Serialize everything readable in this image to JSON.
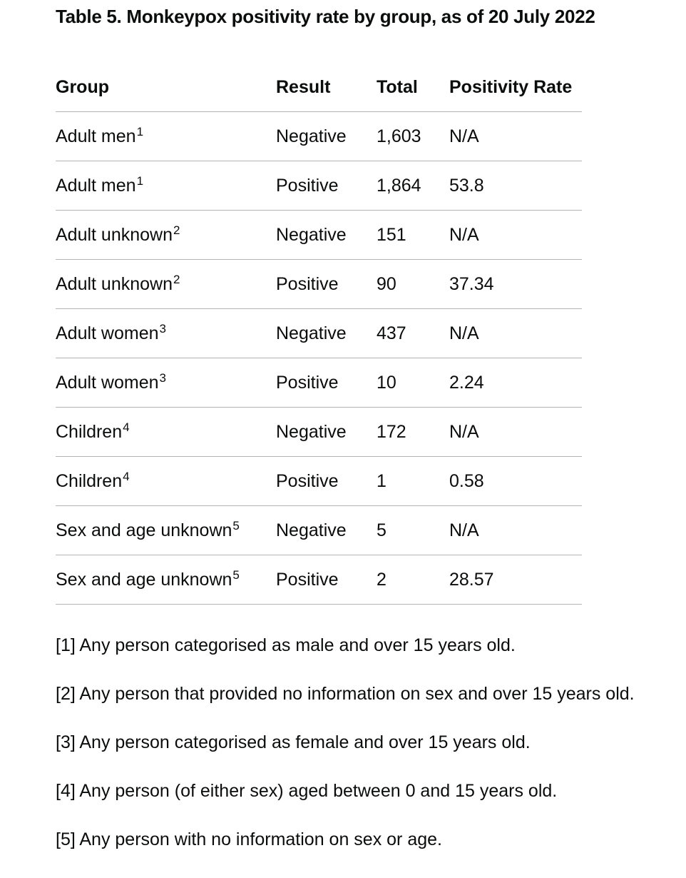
{
  "title": "Table 5. Monkeypox positivity rate by group, as of 20 July 2022",
  "table": {
    "headers": [
      "Group",
      "Result",
      "Total",
      "Positivity Rate"
    ],
    "rows": [
      {
        "group": "Adult men",
        "note": "1",
        "result": "Negative",
        "total": "1,603",
        "rate": "N/A"
      },
      {
        "group": "Adult men",
        "note": "1",
        "result": "Positive",
        "total": "1,864",
        "rate": "53.8"
      },
      {
        "group": "Adult unknown",
        "note": "2",
        "result": "Negative",
        "total": "151",
        "rate": "N/A"
      },
      {
        "group": "Adult unknown",
        "note": "2",
        "result": "Positive",
        "total": "90",
        "rate": "37.34"
      },
      {
        "group": "Adult women",
        "note": "3",
        "result": "Negative",
        "total": "437",
        "rate": "N/A"
      },
      {
        "group": "Adult women",
        "note": "3",
        "result": "Positive",
        "total": "10",
        "rate": "2.24"
      },
      {
        "group": "Children",
        "note": "4",
        "result": "Negative",
        "total": "172",
        "rate": "N/A"
      },
      {
        "group": "Children",
        "note": "4",
        "result": "Positive",
        "total": "1",
        "rate": "0.58"
      },
      {
        "group": "Sex and age unknown",
        "note": "5",
        "result": "Negative",
        "total": "5",
        "rate": "N/A"
      },
      {
        "group": "Sex and age unknown",
        "note": "5",
        "result": "Positive",
        "total": "2",
        "rate": "28.57"
      }
    ]
  },
  "notes": [
    "[1] Any person categorised as male and over 15 years old.",
    "[2] Any person that provided no information on sex and over 15 years old.",
    "[3] Any person categorised as female and over 15 years old.",
    "[4] Any person (of either sex) aged between 0 and 15 years old.",
    "[5] Any person with no information on sex or age."
  ]
}
